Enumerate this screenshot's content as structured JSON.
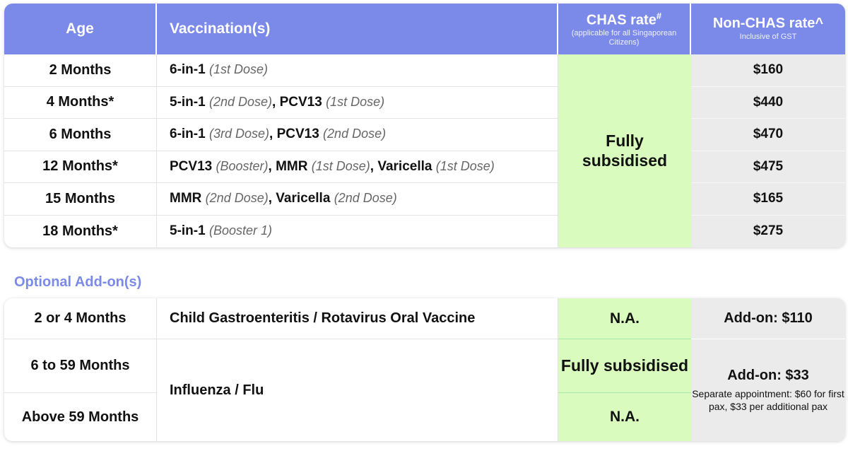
{
  "header": {
    "age": "Age",
    "vaccination": "Vaccination(s)",
    "chas_rate": "CHAS rate",
    "chas_mark": "#",
    "chas_note": "(applicable for all Singaporean Citizens)",
    "non_chas_rate": "Non-CHAS rate^",
    "non_chas_note": "Inclusive of GST"
  },
  "schedule": [
    {
      "age": "2 Months",
      "vaccines": [
        {
          "name": "6-in-1",
          "dose": "(1st Dose)"
        }
      ],
      "price": "$160"
    },
    {
      "age": "4 Months*",
      "vaccines": [
        {
          "name": "5-in-1",
          "dose": "(2nd Dose)"
        },
        {
          "name": "PCV13",
          "dose": "(1st Dose)"
        }
      ],
      "price": "$440"
    },
    {
      "age": "6 Months",
      "vaccines": [
        {
          "name": "6-in-1",
          "dose": "(3rd Dose)"
        },
        {
          "name": "PCV13",
          "dose": "(2nd Dose)"
        }
      ],
      "price": "$470"
    },
    {
      "age": "12 Months*",
      "vaccines": [
        {
          "name": "PCV13",
          "dose": "(Booster)"
        },
        {
          "name": "MMR",
          "dose": "(1st Dose)"
        },
        {
          "name": "Varicella",
          "dose": "(1st Dose)"
        }
      ],
      "price": "$475"
    },
    {
      "age": "15 Months",
      "vaccines": [
        {
          "name": "MMR",
          "dose": "(2nd Dose)"
        },
        {
          "name": "Varicella",
          "dose": "(2nd Dose)"
        }
      ],
      "price": "$165"
    },
    {
      "age": "18 Months*",
      "vaccines": [
        {
          "name": "5-in-1",
          "dose": "(Booster 1)"
        }
      ],
      "price": "$275"
    }
  ],
  "schedule_chas": "Fully subsidised",
  "addon_title": "Optional Add-on(s)",
  "addons": {
    "rotavirus": {
      "age": "2 or 4 Months",
      "vaccine": "Child Gastroenteritis / Rotavirus Oral Vaccine",
      "chas": "N.A.",
      "price": "Add-on: $110"
    },
    "flu": {
      "age_1": "6 to 59 Months",
      "age_2": "Above 59 Months",
      "vaccine": "Influenza / Flu",
      "chas_1": "Fully subsidised",
      "chas_2": "N.A.",
      "price": "Add-on: $33",
      "note": "Separate appointment: $60 for first pax, $33 per additional pax"
    }
  },
  "colors": {
    "header_bg": "#7b8ae8",
    "chas_bg": "#d9fbbd",
    "non_chas_bg": "#ebebeb",
    "section_title": "#7b8ae8"
  }
}
